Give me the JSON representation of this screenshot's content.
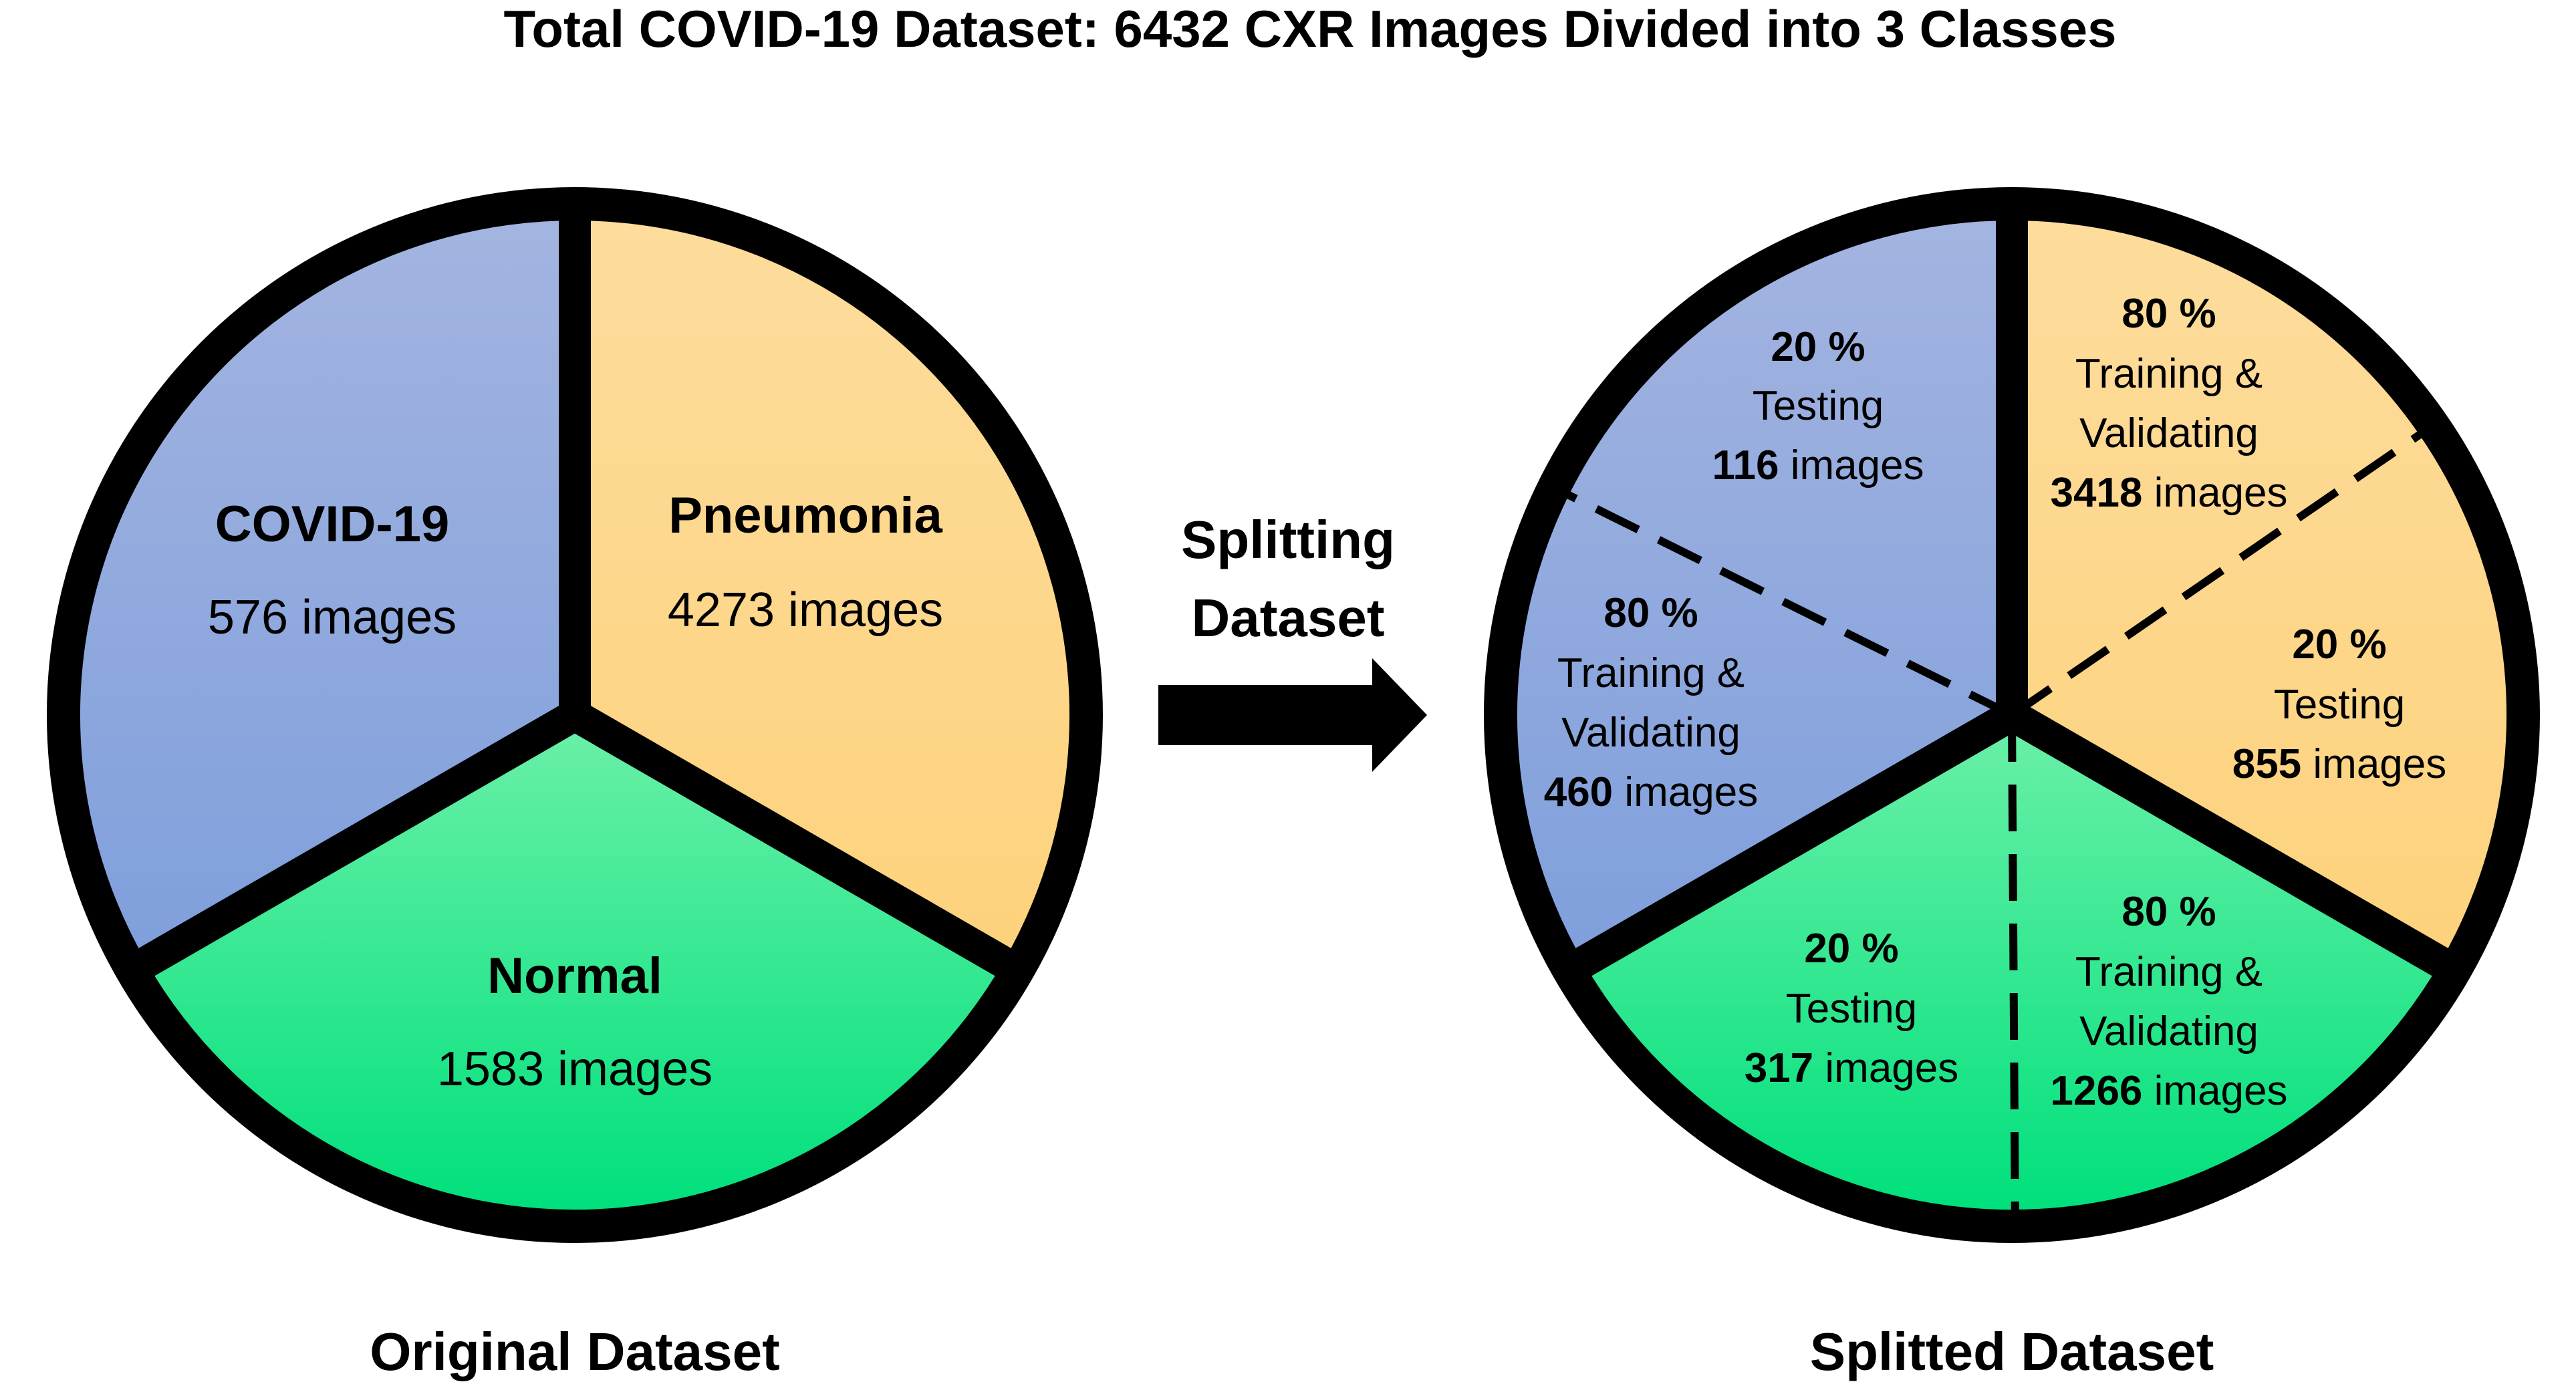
{
  "title": "Total COVID-19 Dataset: 6432 CXR Images Divided into 3 Classes",
  "colors": {
    "border": "#000000",
    "covid_top": "#a3b4e0",
    "covid_bottom": "#7f9fdc",
    "pneumonia_top": "#fddc9c",
    "pneumonia_bottom": "#fdd27c",
    "normal_top": "#6cf0a8",
    "normal_bottom": "#00e07c"
  },
  "original": {
    "caption": "Original Dataset",
    "covid": {
      "name": "COVID-19",
      "count": "576 images"
    },
    "pneumonia": {
      "name": "Pneumonia",
      "count": "4273 images"
    },
    "normal": {
      "name": "Normal",
      "count": "1583 images"
    }
  },
  "arrow": {
    "line1": "Splitting",
    "line2": "Dataset"
  },
  "splitted": {
    "caption": "Splitted Dataset",
    "covid_test": {
      "pct": "20 %",
      "lines": [
        "Testing"
      ],
      "num": "116",
      "unit": " images"
    },
    "covid_train": {
      "pct": "80 %",
      "lines": [
        "Training &",
        "Validating"
      ],
      "num": "460",
      "unit": " images"
    },
    "pneu_train": {
      "pct": "80 %",
      "lines": [
        "Training &",
        "Validating"
      ],
      "num": "3418",
      "unit": " images"
    },
    "pneu_test": {
      "pct": "20 %",
      "lines": [
        "Testing"
      ],
      "num": "855",
      "unit": " images"
    },
    "norm_test": {
      "pct": "20 %",
      "lines": [
        "Testing"
      ],
      "num": "317",
      "unit": " images"
    },
    "norm_train": {
      "pct": "80 %",
      "lines": [
        "Training &",
        "Validating"
      ],
      "num": "1266",
      "unit": " images"
    }
  }
}
